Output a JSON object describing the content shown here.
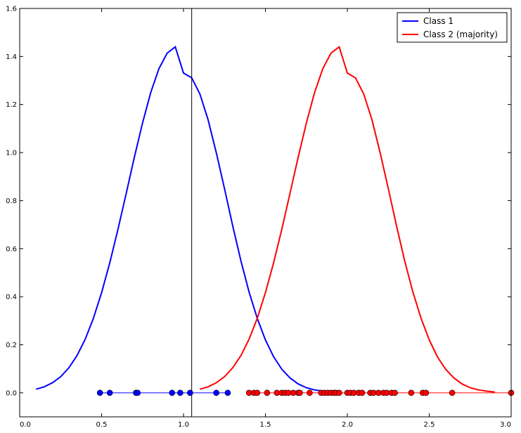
{
  "chart_data": {
    "type": "line",
    "title": "",
    "xlabel": "",
    "ylabel": "",
    "xlim": [
      0.0,
      3.0
    ],
    "ylim": [
      -0.1,
      1.6
    ],
    "grid": false,
    "legend_position": "top-right",
    "x_ticks": [
      "0.0",
      "0.5",
      "1.0",
      "1.5",
      "2.0",
      "2.5",
      "3.0"
    ],
    "y_ticks": [
      "0.0",
      "0.2",
      "0.4",
      "0.6",
      "0.8",
      "1.0",
      "1.2",
      "1.4",
      "1.6"
    ],
    "threshold_x": 1.05,
    "series": [
      {
        "name": "Class 1",
        "color": "#0000ff",
        "curve": {
          "x": [
            0.1,
            0.15,
            0.2,
            0.25,
            0.3,
            0.35,
            0.4,
            0.45,
            0.5,
            0.55,
            0.6,
            0.65,
            0.7,
            0.75,
            0.8,
            0.85,
            0.9,
            0.95,
            1.0,
            1.05,
            1.1,
            1.15,
            1.2,
            1.25,
            1.3,
            1.35,
            1.4,
            1.45,
            1.5,
            1.55,
            1.6,
            1.65,
            1.7,
            1.75,
            1.8,
            1.85,
            1.9
          ],
          "y": [
            0.015,
            0.025,
            0.042,
            0.067,
            0.104,
            0.155,
            0.223,
            0.31,
            0.417,
            0.542,
            0.681,
            0.83,
            0.981,
            1.124,
            1.25,
            1.349,
            1.414,
            1.44,
            1.331,
            1.311,
            1.244,
            1.137,
            1.0,
            0.85,
            0.696,
            0.55,
            0.42,
            0.31,
            0.22,
            0.15,
            0.098,
            0.062,
            0.037,
            0.021,
            0.012,
            0.007,
            0.003
          ]
        },
        "samples": [
          0.49,
          0.55,
          0.71,
          0.72,
          0.93,
          0.98,
          1.04,
          1.2,
          1.27
        ]
      },
      {
        "name": "Class 2 (majority)",
        "color": "#ff0000",
        "curve": {
          "x": [
            1.1,
            1.15,
            1.2,
            1.25,
            1.3,
            1.35,
            1.4,
            1.45,
            1.5,
            1.55,
            1.6,
            1.65,
            1.7,
            1.75,
            1.8,
            1.85,
            1.9,
            1.95,
            2.0,
            2.05,
            2.1,
            2.15,
            2.2,
            2.25,
            2.3,
            2.35,
            2.4,
            2.45,
            2.5,
            2.55,
            2.6,
            2.65,
            2.7,
            2.75,
            2.8,
            2.85,
            2.9
          ],
          "y": [
            0.015,
            0.025,
            0.042,
            0.067,
            0.104,
            0.155,
            0.223,
            0.31,
            0.417,
            0.542,
            0.681,
            0.83,
            0.981,
            1.124,
            1.25,
            1.349,
            1.414,
            1.44,
            1.331,
            1.311,
            1.244,
            1.137,
            1.0,
            0.85,
            0.696,
            0.55,
            0.42,
            0.31,
            0.22,
            0.15,
            0.098,
            0.062,
            0.037,
            0.021,
            0.012,
            0.007,
            0.003
          ]
        },
        "samples": [
          1.4,
          1.43,
          1.45,
          1.51,
          1.57,
          1.6,
          1.62,
          1.64,
          1.67,
          1.7,
          1.71,
          1.77,
          1.84,
          1.86,
          1.88,
          1.9,
          1.92,
          1.93,
          1.95,
          2.0,
          2.02,
          2.04,
          2.07,
          2.09,
          2.14,
          2.16,
          2.19,
          2.22,
          2.24,
          2.27,
          2.29,
          2.39,
          2.46,
          2.48,
          2.64,
          3.0
        ]
      }
    ]
  }
}
